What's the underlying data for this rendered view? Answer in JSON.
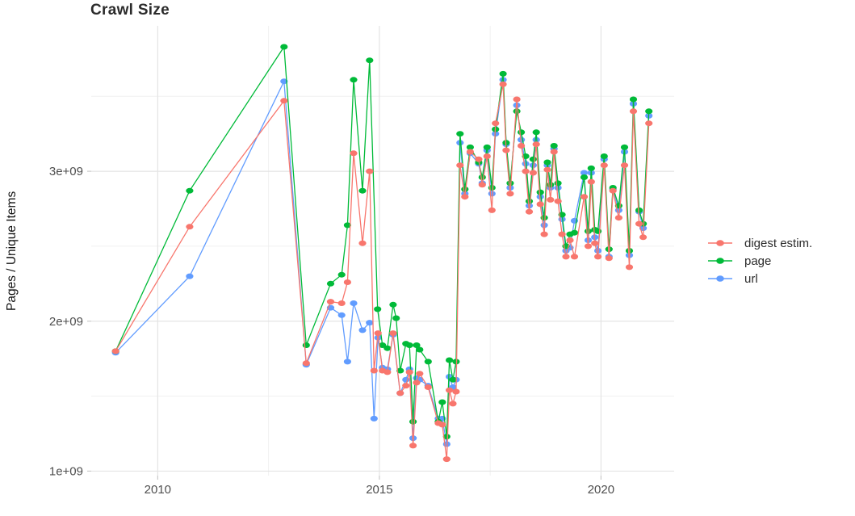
{
  "chart_data": {
    "type": "line",
    "title": "Crawl Size",
    "ylabel": "Pages / Unique Items",
    "xlabel": "",
    "grid": true,
    "legend_position": "right",
    "xlim": [
      2008.5,
      2021.65
    ],
    "ylim_billions": [
      0.97,
      3.97
    ],
    "x_major_ticks": [
      2010,
      2015,
      2020
    ],
    "x_minor_ticks": [
      2012.5,
      2017.5
    ],
    "y_major_ticks": [
      {
        "value": 1,
        "label": "1e+09"
      },
      {
        "value": 2,
        "label": "2e+09"
      },
      {
        "value": 3,
        "label": "3e+09"
      }
    ],
    "y_minor_ticks": [
      1.5,
      2.5,
      3.5
    ],
    "value_unit": "1e+09",
    "series": [
      {
        "name": "digest estim.",
        "color": "#F8766D",
        "points": [
          [
            2009.05,
            1.8
          ],
          [
            2010.72,
            2.63
          ],
          [
            2012.85,
            3.47
          ],
          [
            2013.35,
            1.72
          ],
          [
            2013.9,
            2.13
          ],
          [
            2014.15,
            2.12
          ],
          [
            2014.28,
            2.26
          ],
          [
            2014.42,
            3.12
          ],
          [
            2014.62,
            2.52
          ],
          [
            2014.78,
            3.0
          ],
          [
            2014.88,
            1.67
          ],
          [
            2014.97,
            1.92
          ],
          [
            2015.07,
            1.67
          ],
          [
            2015.18,
            1.66
          ],
          [
            2015.31,
            1.92
          ],
          [
            2015.47,
            1.52
          ],
          [
            2015.6,
            1.57
          ],
          [
            2015.68,
            1.66
          ],
          [
            2015.76,
            1.17
          ],
          [
            2015.84,
            1.59
          ],
          [
            2015.91,
            1.65
          ],
          [
            2016.1,
            1.56
          ],
          [
            2016.33,
            1.32
          ],
          [
            2016.42,
            1.31
          ],
          [
            2016.52,
            1.08
          ],
          [
            2016.58,
            1.54
          ],
          [
            2016.66,
            1.45
          ],
          [
            2016.73,
            1.53
          ],
          [
            2016.82,
            3.04
          ],
          [
            2016.93,
            2.83
          ],
          [
            2017.05,
            3.13
          ],
          [
            2017.24,
            3.08
          ],
          [
            2017.32,
            2.91
          ],
          [
            2017.43,
            3.1
          ],
          [
            2017.54,
            2.74
          ],
          [
            2017.62,
            3.32
          ],
          [
            2017.79,
            3.58
          ],
          [
            2017.86,
            3.14
          ],
          [
            2017.95,
            2.85
          ],
          [
            2018.1,
            3.48
          ],
          [
            2018.2,
            3.17
          ],
          [
            2018.3,
            3.0
          ],
          [
            2018.38,
            2.73
          ],
          [
            2018.47,
            2.99
          ],
          [
            2018.54,
            3.18
          ],
          [
            2018.63,
            2.78
          ],
          [
            2018.72,
            2.58
          ],
          [
            2018.79,
            3.01
          ],
          [
            2018.86,
            2.81
          ],
          [
            2018.94,
            3.13
          ],
          [
            2019.03,
            2.8
          ],
          [
            2019.12,
            2.58
          ],
          [
            2019.21,
            2.43
          ],
          [
            2019.3,
            2.54
          ],
          [
            2019.4,
            2.43
          ],
          [
            2019.62,
            2.83
          ],
          [
            2019.71,
            2.5
          ],
          [
            2019.78,
            2.93
          ],
          [
            2019.86,
            2.52
          ],
          [
            2019.93,
            2.43
          ],
          [
            2020.07,
            3.04
          ],
          [
            2020.18,
            2.42
          ],
          [
            2020.27,
            2.87
          ],
          [
            2020.4,
            2.69
          ],
          [
            2020.53,
            3.04
          ],
          [
            2020.64,
            2.36
          ],
          [
            2020.73,
            3.4
          ],
          [
            2020.86,
            2.65
          ],
          [
            2020.95,
            2.56
          ],
          [
            2021.08,
            3.32
          ]
        ]
      },
      {
        "name": "page",
        "color": "#00BA38",
        "points": [
          [
            2009.05,
            1.8
          ],
          [
            2010.72,
            2.87
          ],
          [
            2012.85,
            3.83
          ],
          [
            2013.35,
            1.84
          ],
          [
            2013.9,
            2.25
          ],
          [
            2014.15,
            2.31
          ],
          [
            2014.28,
            2.64
          ],
          [
            2014.42,
            3.61
          ],
          [
            2014.62,
            2.87
          ],
          [
            2014.78,
            3.74
          ],
          [
            2014.96,
            2.08
          ],
          [
            2015.07,
            1.84
          ],
          [
            2015.18,
            1.82
          ],
          [
            2015.31,
            2.11
          ],
          [
            2015.38,
            2.02
          ],
          [
            2015.47,
            1.67
          ],
          [
            2015.6,
            1.85
          ],
          [
            2015.68,
            1.84
          ],
          [
            2015.76,
            1.33
          ],
          [
            2015.84,
            1.84
          ],
          [
            2015.91,
            1.81
          ],
          [
            2016.1,
            1.73
          ],
          [
            2016.33,
            1.33
          ],
          [
            2016.42,
            1.46
          ],
          [
            2016.52,
            1.23
          ],
          [
            2016.58,
            1.74
          ],
          [
            2016.66,
            1.61
          ],
          [
            2016.73,
            1.73
          ],
          [
            2016.82,
            3.25
          ],
          [
            2016.93,
            2.88
          ],
          [
            2017.05,
            3.16
          ],
          [
            2017.24,
            3.06
          ],
          [
            2017.32,
            2.96
          ],
          [
            2017.43,
            3.16
          ],
          [
            2017.54,
            2.89
          ],
          [
            2017.62,
            3.28
          ],
          [
            2017.79,
            3.65
          ],
          [
            2017.86,
            3.19
          ],
          [
            2017.95,
            2.92
          ],
          [
            2018.1,
            3.4
          ],
          [
            2018.2,
            3.26
          ],
          [
            2018.3,
            3.1
          ],
          [
            2018.38,
            2.8
          ],
          [
            2018.47,
            3.08
          ],
          [
            2018.54,
            3.26
          ],
          [
            2018.63,
            2.86
          ],
          [
            2018.72,
            2.69
          ],
          [
            2018.79,
            3.06
          ],
          [
            2018.86,
            2.91
          ],
          [
            2018.94,
            3.17
          ],
          [
            2019.03,
            2.92
          ],
          [
            2019.12,
            2.71
          ],
          [
            2019.21,
            2.5
          ],
          [
            2019.3,
            2.58
          ],
          [
            2019.4,
            2.59
          ],
          [
            2019.62,
            2.96
          ],
          [
            2019.71,
            2.6
          ],
          [
            2019.78,
            3.02
          ],
          [
            2019.86,
            2.61
          ],
          [
            2019.93,
            2.6
          ],
          [
            2020.07,
            3.1
          ],
          [
            2020.18,
            2.48
          ],
          [
            2020.27,
            2.89
          ],
          [
            2020.4,
            2.77
          ],
          [
            2020.53,
            3.16
          ],
          [
            2020.64,
            2.47
          ],
          [
            2020.73,
            3.48
          ],
          [
            2020.86,
            2.74
          ],
          [
            2020.95,
            2.65
          ],
          [
            2021.08,
            3.4
          ]
        ]
      },
      {
        "name": "url",
        "color": "#619CFF",
        "points": [
          [
            2009.05,
            1.79
          ],
          [
            2010.72,
            2.3
          ],
          [
            2012.85,
            3.6
          ],
          [
            2013.35,
            1.71
          ],
          [
            2013.9,
            2.09
          ],
          [
            2014.15,
            2.04
          ],
          [
            2014.28,
            1.73
          ],
          [
            2014.42,
            2.12
          ],
          [
            2014.62,
            1.94
          ],
          [
            2014.78,
            1.99
          ],
          [
            2014.88,
            1.35
          ],
          [
            2014.97,
            1.89
          ],
          [
            2015.07,
            1.69
          ],
          [
            2015.18,
            1.68
          ],
          [
            2015.31,
            1.91
          ],
          [
            2015.47,
            1.52
          ],
          [
            2015.6,
            1.61
          ],
          [
            2015.68,
            1.68
          ],
          [
            2015.76,
            1.22
          ],
          [
            2015.84,
            1.62
          ],
          [
            2015.91,
            1.61
          ],
          [
            2016.1,
            1.57
          ],
          [
            2016.33,
            1.35
          ],
          [
            2016.42,
            1.35
          ],
          [
            2016.52,
            1.18
          ],
          [
            2016.58,
            1.63
          ],
          [
            2016.66,
            1.56
          ],
          [
            2016.73,
            1.61
          ],
          [
            2016.82,
            3.19
          ],
          [
            2016.93,
            2.85
          ],
          [
            2017.05,
            3.12
          ],
          [
            2017.24,
            3.05
          ],
          [
            2017.32,
            2.92
          ],
          [
            2017.43,
            3.14
          ],
          [
            2017.54,
            2.85
          ],
          [
            2017.62,
            3.25
          ],
          [
            2017.79,
            3.61
          ],
          [
            2017.86,
            3.18
          ],
          [
            2017.95,
            2.89
          ],
          [
            2018.1,
            3.44
          ],
          [
            2018.2,
            3.21
          ],
          [
            2018.3,
            3.05
          ],
          [
            2018.38,
            2.77
          ],
          [
            2018.47,
            3.04
          ],
          [
            2018.54,
            3.21
          ],
          [
            2018.63,
            2.83
          ],
          [
            2018.72,
            2.64
          ],
          [
            2018.79,
            3.04
          ],
          [
            2018.86,
            2.89
          ],
          [
            2018.94,
            3.15
          ],
          [
            2019.03,
            2.89
          ],
          [
            2019.12,
            2.68
          ],
          [
            2019.21,
            2.47
          ],
          [
            2019.3,
            2.49
          ],
          [
            2019.4,
            2.67
          ],
          [
            2019.62,
            2.99
          ],
          [
            2019.71,
            2.54
          ],
          [
            2019.78,
            2.99
          ],
          [
            2019.86,
            2.56
          ],
          [
            2019.93,
            2.47
          ],
          [
            2020.07,
            3.08
          ],
          [
            2020.18,
            2.43
          ],
          [
            2020.27,
            2.88
          ],
          [
            2020.4,
            2.74
          ],
          [
            2020.53,
            3.13
          ],
          [
            2020.64,
            2.44
          ],
          [
            2020.73,
            3.45
          ],
          [
            2020.86,
            2.73
          ],
          [
            2020.95,
            2.62
          ],
          [
            2021.08,
            3.37
          ]
        ]
      }
    ]
  },
  "style": {
    "grid_major_color": "#e4e4e4",
    "grid_minor_color": "#f0f0f0",
    "tick_color": "#c9c9c9",
    "tick_label_color": "#4e4e4e",
    "background": "#ffffff"
  }
}
